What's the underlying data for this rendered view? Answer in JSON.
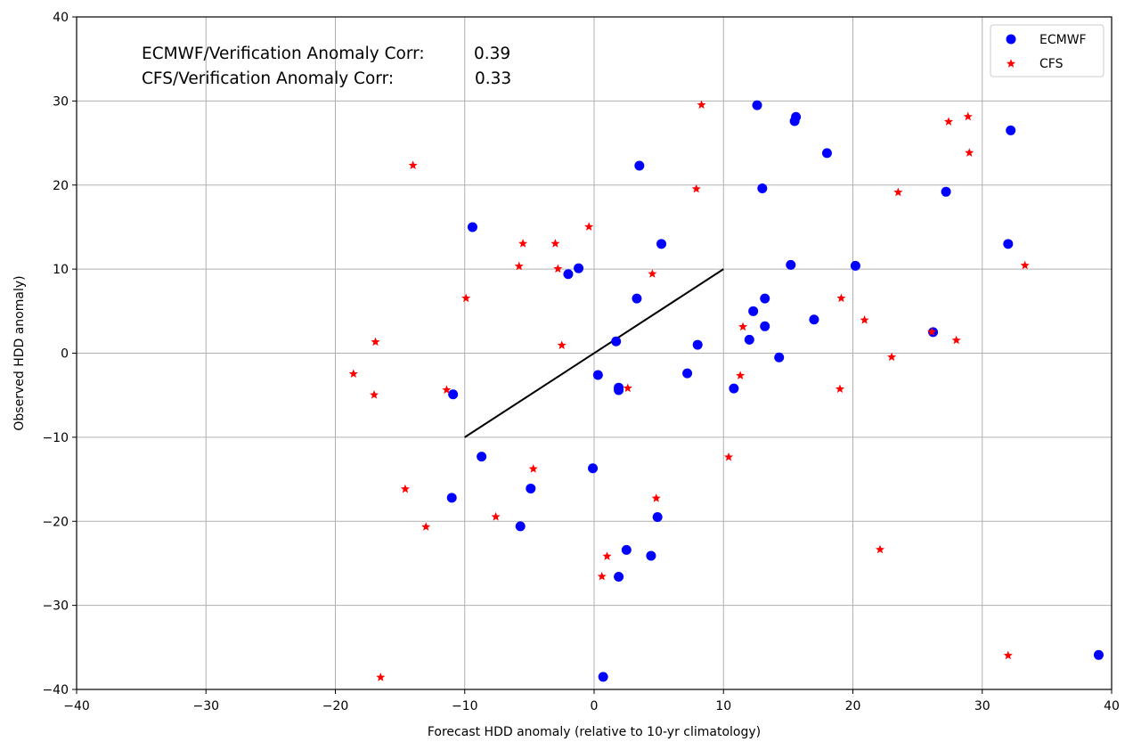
{
  "chart_data": {
    "type": "scatter",
    "title": "",
    "xlabel": "Forecast HDD anomaly (relative to 10-yr climatology)",
    "ylabel": "Observed HDD anomaly)",
    "xlim": [
      -40,
      40
    ],
    "ylim": [
      -40,
      40
    ],
    "xticks": [
      -40,
      -30,
      -20,
      -10,
      0,
      10,
      20,
      30,
      40
    ],
    "yticks": [
      -40,
      -30,
      -20,
      -10,
      0,
      10,
      20,
      30,
      40
    ],
    "xtick_labels": [
      "−40",
      "−30",
      "−20",
      "−10",
      "0",
      "10",
      "20",
      "30",
      "40"
    ],
    "ytick_labels": [
      "−40",
      "−30",
      "−20",
      "−10",
      "0",
      "10",
      "20",
      "30",
      "40"
    ],
    "grid": true,
    "legend_position": "top-right",
    "annotations": {
      "ecmwf_label": "ECMWF/Verification Anomaly Corr:",
      "ecmwf_value": "0.39",
      "cfs_label": "CFS/Verification Anomaly Corr:",
      "cfs_value": "0.33"
    },
    "reference_line": {
      "x": [
        -10,
        10
      ],
      "y": [
        -10,
        10
      ],
      "color": "#000000"
    },
    "series": [
      {
        "name": "ECMWF",
        "marker": "circle",
        "color": "#0000ff",
        "points": [
          [
            -9.4,
            15
          ],
          [
            -2.0,
            9.4
          ],
          [
            -1.2,
            10.1
          ],
          [
            3.5,
            22.3
          ],
          [
            5.2,
            13.0
          ],
          [
            3.3,
            6.5
          ],
          [
            1.7,
            1.4
          ],
          [
            0.3,
            -2.6
          ],
          [
            1.9,
            -4.1
          ],
          [
            1.9,
            -4.4
          ],
          [
            -10.9,
            -4.9
          ],
          [
            -8.7,
            -12.3
          ],
          [
            -11.0,
            -17.2
          ],
          [
            -4.9,
            -16.1
          ],
          [
            -5.7,
            -20.6
          ],
          [
            -0.1,
            -13.7
          ],
          [
            4.9,
            -19.5
          ],
          [
            2.5,
            -23.4
          ],
          [
            4.4,
            -24.1
          ],
          [
            1.9,
            -26.6
          ],
          [
            0.7,
            -38.5
          ],
          [
            7.2,
            -2.4
          ],
          [
            8.0,
            1.0
          ],
          [
            10.8,
            -4.2
          ],
          [
            12.0,
            1.6
          ],
          [
            12.3,
            5.0
          ],
          [
            13.2,
            6.5
          ],
          [
            13.2,
            3.2
          ],
          [
            14.3,
            -0.5
          ],
          [
            12.6,
            29.5
          ],
          [
            13.0,
            19.6
          ],
          [
            15.5,
            27.6
          ],
          [
            15.6,
            28.1
          ],
          [
            18.0,
            23.8
          ],
          [
            15.2,
            10.5
          ],
          [
            20.2,
            10.4
          ],
          [
            17.0,
            4.0
          ],
          [
            26.2,
            2.5
          ],
          [
            27.2,
            19.2
          ],
          [
            32.2,
            26.5
          ],
          [
            32.0,
            13.0
          ],
          [
            39.0,
            -35.9
          ]
        ]
      },
      {
        "name": "CFS",
        "marker": "star",
        "color": "#ff0000",
        "points": [
          [
            -14.0,
            22.4
          ],
          [
            -9.9,
            6.6
          ],
          [
            -5.5,
            13.1
          ],
          [
            -5.8,
            10.4
          ],
          [
            -3.0,
            13.1
          ],
          [
            -2.8,
            10.1
          ],
          [
            -0.4,
            15.1
          ],
          [
            -2.5,
            1.0
          ],
          [
            -16.9,
            1.4
          ],
          [
            -18.6,
            -2.4
          ],
          [
            -17.0,
            -4.9
          ],
          [
            -11.4,
            -4.3
          ],
          [
            -14.6,
            -16.1
          ],
          [
            -13.0,
            -20.6
          ],
          [
            -7.6,
            -19.4
          ],
          [
            -4.7,
            -13.7
          ],
          [
            -16.5,
            -38.5
          ],
          [
            0.6,
            -26.5
          ],
          [
            1.0,
            -24.1
          ],
          [
            4.8,
            -17.2
          ],
          [
            2.6,
            -4.1
          ],
          [
            4.5,
            9.5
          ],
          [
            7.9,
            19.6
          ],
          [
            8.3,
            29.6
          ],
          [
            11.5,
            3.2
          ],
          [
            11.3,
            -2.6
          ],
          [
            10.4,
            -12.3
          ],
          [
            19.1,
            6.6
          ],
          [
            20.9,
            4.0
          ],
          [
            19.0,
            -4.2
          ],
          [
            23.0,
            -0.4
          ],
          [
            23.5,
            19.2
          ],
          [
            22.1,
            -23.3
          ],
          [
            26.1,
            2.6
          ],
          [
            28.0,
            1.6
          ],
          [
            27.4,
            27.6
          ],
          [
            28.9,
            28.2
          ],
          [
            29.0,
            23.9
          ],
          [
            33.3,
            10.5
          ],
          [
            32.0,
            -35.9
          ]
        ]
      }
    ]
  }
}
